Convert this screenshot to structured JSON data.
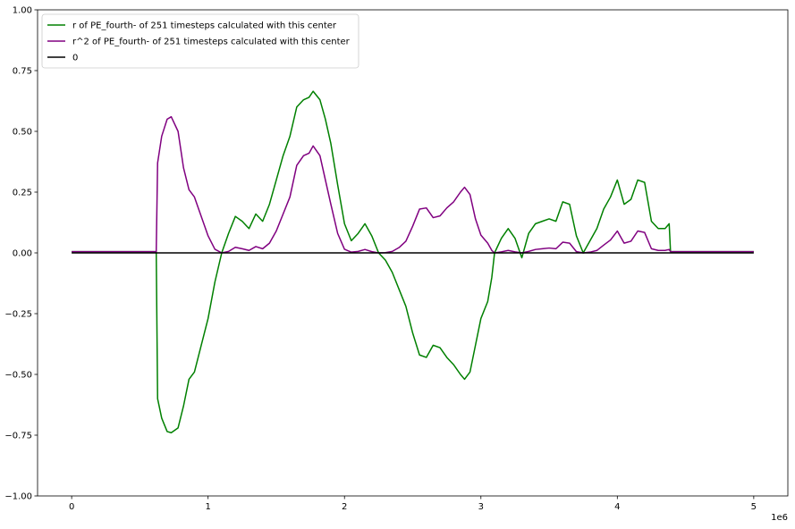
{
  "chart_data": {
    "type": "line",
    "title": "",
    "xlabel": "",
    "ylabel": "",
    "x_offset_label": "1e6",
    "xlim": [
      -0.25,
      5.25
    ],
    "ylim": [
      -1.0,
      1.0
    ],
    "xticks": [
      0,
      1,
      2,
      3,
      4,
      5
    ],
    "xtick_labels": [
      "0",
      "1",
      "2",
      "3",
      "4",
      "5"
    ],
    "yticks": [
      -1.0,
      -0.75,
      -0.5,
      -0.25,
      0.0,
      0.25,
      0.5,
      0.75,
      1.0
    ],
    "ytick_labels": [
      "−1.00",
      "−0.75",
      "−0.50",
      "−0.25",
      "0.00",
      "0.25",
      "0.50",
      "0.75",
      "1.00"
    ],
    "grid": false,
    "legend_position": "upper-left",
    "series": [
      {
        "name": "r of PE_fourth- of 251 timesteps calculated with this center",
        "color": "#008000",
        "points": [
          [
            0,
            0.005
          ],
          [
            0.62,
            0.005
          ],
          [
            0.63,
            -0.6
          ],
          [
            0.66,
            -0.68
          ],
          [
            0.7,
            -0.735
          ],
          [
            0.73,
            -0.74
          ],
          [
            0.78,
            -0.72
          ],
          [
            0.82,
            -0.63
          ],
          [
            0.86,
            -0.52
          ],
          [
            0.9,
            -0.49
          ],
          [
            0.95,
            -0.38
          ],
          [
            1.0,
            -0.27
          ],
          [
            1.05,
            -0.12
          ],
          [
            1.1,
            0.0
          ],
          [
            1.15,
            0.08
          ],
          [
            1.2,
            0.15
          ],
          [
            1.25,
            0.13
          ],
          [
            1.3,
            0.1
          ],
          [
            1.35,
            0.16
          ],
          [
            1.4,
            0.13
          ],
          [
            1.45,
            0.2
          ],
          [
            1.5,
            0.3
          ],
          [
            1.55,
            0.4
          ],
          [
            1.6,
            0.48
          ],
          [
            1.65,
            0.6
          ],
          [
            1.7,
            0.63
          ],
          [
            1.74,
            0.64
          ],
          [
            1.77,
            0.665
          ],
          [
            1.82,
            0.63
          ],
          [
            1.86,
            0.55
          ],
          [
            1.9,
            0.45
          ],
          [
            1.95,
            0.28
          ],
          [
            2.0,
            0.12
          ],
          [
            2.05,
            0.05
          ],
          [
            2.1,
            0.08
          ],
          [
            2.15,
            0.12
          ],
          [
            2.2,
            0.07
          ],
          [
            2.25,
            0.0
          ],
          [
            2.3,
            -0.03
          ],
          [
            2.35,
            -0.08
          ],
          [
            2.4,
            -0.15
          ],
          [
            2.45,
            -0.22
          ],
          [
            2.5,
            -0.33
          ],
          [
            2.55,
            -0.42
          ],
          [
            2.6,
            -0.43
          ],
          [
            2.65,
            -0.38
          ],
          [
            2.7,
            -0.39
          ],
          [
            2.75,
            -0.43
          ],
          [
            2.8,
            -0.46
          ],
          [
            2.85,
            -0.5
          ],
          [
            2.88,
            -0.52
          ],
          [
            2.92,
            -0.49
          ],
          [
            2.96,
            -0.38
          ],
          [
            3.0,
            -0.27
          ],
          [
            3.05,
            -0.2
          ],
          [
            3.08,
            -0.1
          ],
          [
            3.1,
            0.0
          ],
          [
            3.15,
            0.06
          ],
          [
            3.2,
            0.1
          ],
          [
            3.25,
            0.06
          ],
          [
            3.3,
            -0.02
          ],
          [
            3.35,
            0.08
          ],
          [
            3.4,
            0.12
          ],
          [
            3.45,
            0.13
          ],
          [
            3.5,
            0.14
          ],
          [
            3.55,
            0.13
          ],
          [
            3.6,
            0.21
          ],
          [
            3.65,
            0.2
          ],
          [
            3.7,
            0.07
          ],
          [
            3.75,
            0.0
          ],
          [
            3.8,
            0.05
          ],
          [
            3.85,
            0.1
          ],
          [
            3.9,
            0.18
          ],
          [
            3.95,
            0.23
          ],
          [
            4.0,
            0.3
          ],
          [
            4.05,
            0.2
          ],
          [
            4.1,
            0.22
          ],
          [
            4.15,
            0.3
          ],
          [
            4.2,
            0.29
          ],
          [
            4.25,
            0.13
          ],
          [
            4.3,
            0.1
          ],
          [
            4.35,
            0.1
          ],
          [
            4.38,
            0.12
          ],
          [
            4.39,
            0.005
          ],
          [
            5.0,
            0.005
          ]
        ]
      },
      {
        "name": "r^2 of PE_fourth- of 251 timesteps calculated with this center",
        "color": "#800080",
        "points": [
          [
            0,
            0.005
          ],
          [
            0.62,
            0.005
          ],
          [
            0.63,
            0.37
          ],
          [
            0.66,
            0.48
          ],
          [
            0.7,
            0.55
          ],
          [
            0.73,
            0.56
          ],
          [
            0.78,
            0.5
          ],
          [
            0.82,
            0.35
          ],
          [
            0.86,
            0.26
          ],
          [
            0.9,
            0.23
          ],
          [
            0.95,
            0.15
          ],
          [
            1.0,
            0.07
          ],
          [
            1.05,
            0.015
          ],
          [
            1.1,
            0.0
          ],
          [
            1.15,
            0.006
          ],
          [
            1.2,
            0.023
          ],
          [
            1.25,
            0.017
          ],
          [
            1.3,
            0.01
          ],
          [
            1.35,
            0.026
          ],
          [
            1.4,
            0.017
          ],
          [
            1.45,
            0.04
          ],
          [
            1.5,
            0.09
          ],
          [
            1.55,
            0.16
          ],
          [
            1.6,
            0.23
          ],
          [
            1.65,
            0.36
          ],
          [
            1.7,
            0.4
          ],
          [
            1.74,
            0.41
          ],
          [
            1.77,
            0.44
          ],
          [
            1.82,
            0.4
          ],
          [
            1.86,
            0.3
          ],
          [
            1.9,
            0.2
          ],
          [
            1.95,
            0.08
          ],
          [
            2.0,
            0.015
          ],
          [
            2.05,
            0.003
          ],
          [
            2.1,
            0.006
          ],
          [
            2.15,
            0.014
          ],
          [
            2.2,
            0.005
          ],
          [
            2.25,
            0.0
          ],
          [
            2.3,
            0.001
          ],
          [
            2.35,
            0.006
          ],
          [
            2.4,
            0.022
          ],
          [
            2.45,
            0.048
          ],
          [
            2.5,
            0.11
          ],
          [
            2.55,
            0.18
          ],
          [
            2.6,
            0.185
          ],
          [
            2.65,
            0.145
          ],
          [
            2.7,
            0.152
          ],
          [
            2.75,
            0.185
          ],
          [
            2.8,
            0.21
          ],
          [
            2.85,
            0.25
          ],
          [
            2.88,
            0.27
          ],
          [
            2.92,
            0.24
          ],
          [
            2.96,
            0.14
          ],
          [
            3.0,
            0.073
          ],
          [
            3.05,
            0.04
          ],
          [
            3.08,
            0.01
          ],
          [
            3.1,
            0.0
          ],
          [
            3.15,
            0.004
          ],
          [
            3.2,
            0.01
          ],
          [
            3.25,
            0.004
          ],
          [
            3.3,
            0.0
          ],
          [
            3.35,
            0.006
          ],
          [
            3.4,
            0.014
          ],
          [
            3.45,
            0.017
          ],
          [
            3.5,
            0.02
          ],
          [
            3.55,
            0.017
          ],
          [
            3.6,
            0.044
          ],
          [
            3.65,
            0.04
          ],
          [
            3.7,
            0.005
          ],
          [
            3.75,
            0.0
          ],
          [
            3.8,
            0.003
          ],
          [
            3.85,
            0.01
          ],
          [
            3.9,
            0.032
          ],
          [
            3.95,
            0.053
          ],
          [
            4.0,
            0.09
          ],
          [
            4.05,
            0.04
          ],
          [
            4.1,
            0.048
          ],
          [
            4.15,
            0.09
          ],
          [
            4.2,
            0.084
          ],
          [
            4.25,
            0.017
          ],
          [
            4.3,
            0.01
          ],
          [
            4.35,
            0.01
          ],
          [
            4.38,
            0.014
          ],
          [
            4.39,
            0.005
          ],
          [
            5.0,
            0.005
          ]
        ]
      },
      {
        "name": "0",
        "color": "#000000",
        "points": [
          [
            0,
            0.0
          ],
          [
            5.0,
            0.0
          ]
        ]
      }
    ]
  }
}
